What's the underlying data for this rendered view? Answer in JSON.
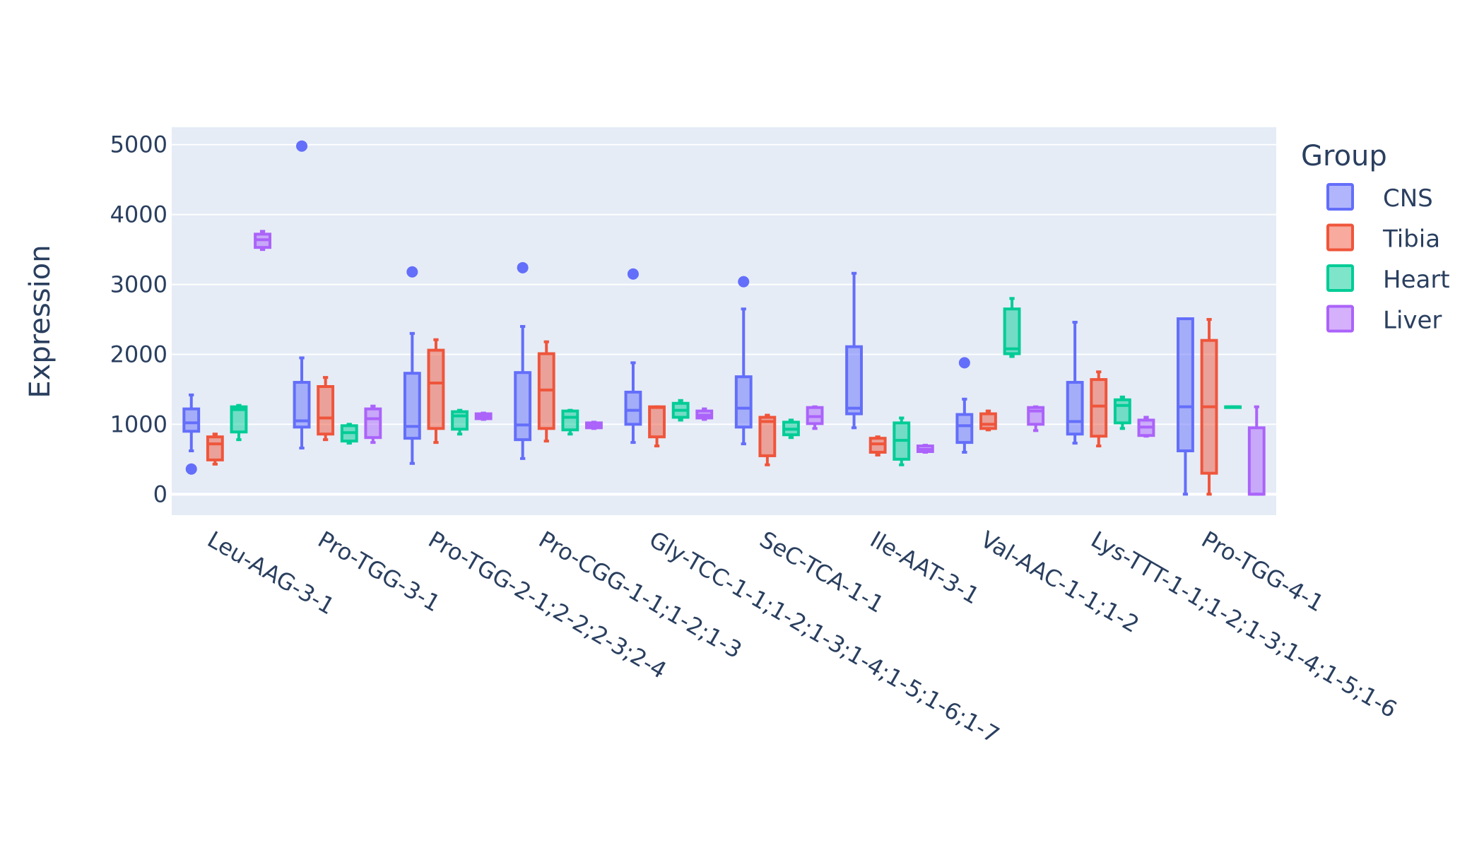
{
  "chart_data": {
    "type": "box",
    "title": "",
    "xlabel": "",
    "ylabel": "Expression",
    "ylim": [
      -300,
      5250
    ],
    "yticks": [
      0,
      1000,
      2000,
      3000,
      4000,
      5000
    ],
    "grid": true,
    "legend": {
      "title": "Group",
      "placement": "right"
    },
    "categories": [
      "Leu-AAG-3-1",
      "Pro-TGG-3-1",
      "Pro-TGG-2-1;2-2;2-3;2-4",
      "Pro-CGG-1-1;1-2;1-3",
      "Gly-TCC-1-1;1-2;1-3;1-4;1-5;1-6;1-7",
      "SeC-TCA-1-1",
      "Ile-AAT-3-1",
      "Val-AAC-1-1;1-2",
      "Lys-TTT-1-1;1-2;1-3;1-4;1-5;1-6",
      "Pro-TGG-4-1"
    ],
    "series": [
      {
        "name": "CNS",
        "color": "#636efa",
        "boxes": [
          {
            "min": 620,
            "q1": 900,
            "median": 1020,
            "q3": 1220,
            "max": 1420,
            "outliers": [
              360
            ]
          },
          {
            "min": 660,
            "q1": 960,
            "median": 1050,
            "q3": 1600,
            "max": 1950,
            "outliers": [
              4980
            ]
          },
          {
            "min": 440,
            "q1": 800,
            "median": 970,
            "q3": 1730,
            "max": 2300,
            "outliers": [
              3180
            ]
          },
          {
            "min": 510,
            "q1": 780,
            "median": 990,
            "q3": 1740,
            "max": 2400,
            "outliers": [
              3240
            ]
          },
          {
            "min": 740,
            "q1": 1000,
            "median": 1200,
            "q3": 1460,
            "max": 1880,
            "outliers": [
              3150
            ]
          },
          {
            "min": 720,
            "q1": 960,
            "median": 1230,
            "q3": 1680,
            "max": 2650,
            "outliers": [
              3040
            ]
          },
          {
            "min": 950,
            "q1": 1150,
            "median": 1230,
            "q3": 2110,
            "max": 3160,
            "outliers": []
          },
          {
            "min": 600,
            "q1": 740,
            "median": 980,
            "q3": 1140,
            "max": 1360,
            "outliers": [
              1880
            ]
          },
          {
            "min": 730,
            "q1": 860,
            "median": 1040,
            "q3": 1600,
            "max": 2460,
            "outliers": []
          },
          {
            "min": 0,
            "q1": 620,
            "median": 1250,
            "q3": 2510,
            "max": 2510,
            "outliers": []
          }
        ]
      },
      {
        "name": "Tibia",
        "color": "#ef553b",
        "boxes": [
          {
            "min": 430,
            "q1": 490,
            "median": 720,
            "q3": 820,
            "max": 860,
            "outliers": []
          },
          {
            "min": 780,
            "q1": 860,
            "median": 1090,
            "q3": 1540,
            "max": 1670,
            "outliers": []
          },
          {
            "min": 740,
            "q1": 940,
            "median": 1590,
            "q3": 2060,
            "max": 2210,
            "outliers": []
          },
          {
            "min": 760,
            "q1": 940,
            "median": 1490,
            "q3": 2010,
            "max": 2180,
            "outliers": []
          },
          {
            "min": 690,
            "q1": 820,
            "median": 1240,
            "q3": 1250,
            "max": 1250,
            "outliers": []
          },
          {
            "min": 420,
            "q1": 550,
            "median": 1040,
            "q3": 1100,
            "max": 1130,
            "outliers": []
          },
          {
            "min": 560,
            "q1": 600,
            "median": 720,
            "q3": 800,
            "max": 820,
            "outliers": []
          },
          {
            "min": 920,
            "q1": 940,
            "median": 1000,
            "q3": 1150,
            "max": 1190,
            "outliers": []
          },
          {
            "min": 690,
            "q1": 830,
            "median": 1260,
            "q3": 1640,
            "max": 1750,
            "outliers": []
          },
          {
            "min": 0,
            "q1": 300,
            "median": 1250,
            "q3": 2200,
            "max": 2500,
            "outliers": []
          }
        ]
      },
      {
        "name": "Heart",
        "color": "#00cc96",
        "boxes": [
          {
            "min": 780,
            "q1": 890,
            "median": 1210,
            "q3": 1250,
            "max": 1270,
            "outliers": []
          },
          {
            "min": 730,
            "q1": 760,
            "median": 880,
            "q3": 980,
            "max": 1000,
            "outliers": []
          },
          {
            "min": 860,
            "q1": 930,
            "median": 1120,
            "q3": 1180,
            "max": 1200,
            "outliers": []
          },
          {
            "min": 860,
            "q1": 920,
            "median": 1100,
            "q3": 1190,
            "max": 1200,
            "outliers": []
          },
          {
            "min": 1060,
            "q1": 1100,
            "median": 1200,
            "q3": 1300,
            "max": 1340,
            "outliers": []
          },
          {
            "min": 810,
            "q1": 850,
            "median": 930,
            "q3": 1030,
            "max": 1060,
            "outliers": []
          },
          {
            "min": 420,
            "q1": 500,
            "median": 770,
            "q3": 1020,
            "max": 1090,
            "outliers": []
          },
          {
            "min": 1970,
            "q1": 2010,
            "median": 2080,
            "q3": 2650,
            "max": 2800,
            "outliers": []
          },
          {
            "min": 940,
            "q1": 1020,
            "median": 1270,
            "q3": 1350,
            "max": 1390,
            "outliers": []
          },
          {
            "min": 1250,
            "q1": 1250,
            "median": 1250,
            "q3": 1250,
            "max": 1250,
            "outliers": []
          }
        ]
      },
      {
        "name": "Liver",
        "color": "#ab63fa",
        "boxes": [
          {
            "min": 3500,
            "q1": 3530,
            "median": 3640,
            "q3": 3720,
            "max": 3760,
            "outliers": []
          },
          {
            "min": 740,
            "q1": 810,
            "median": 1080,
            "q3": 1220,
            "max": 1260,
            "outliers": []
          },
          {
            "min": 1070,
            "q1": 1080,
            "median": 1110,
            "q3": 1150,
            "max": 1160,
            "outliers": []
          },
          {
            "min": 940,
            "q1": 950,
            "median": 980,
            "q3": 1020,
            "max": 1030,
            "outliers": []
          },
          {
            "min": 1070,
            "q1": 1090,
            "median": 1130,
            "q3": 1190,
            "max": 1220,
            "outliers": []
          },
          {
            "min": 940,
            "q1": 1010,
            "median": 1110,
            "q3": 1240,
            "max": 1250,
            "outliers": []
          },
          {
            "min": 600,
            "q1": 610,
            "median": 640,
            "q3": 690,
            "max": 700,
            "outliers": []
          },
          {
            "min": 910,
            "q1": 1000,
            "median": 1190,
            "q3": 1240,
            "max": 1250,
            "outliers": []
          },
          {
            "min": 830,
            "q1": 840,
            "median": 960,
            "q3": 1060,
            "max": 1100,
            "outliers": []
          },
          {
            "min": 0,
            "q1": 0,
            "median": 0,
            "q3": 950,
            "max": 1250,
            "outliers": []
          }
        ]
      }
    ]
  }
}
